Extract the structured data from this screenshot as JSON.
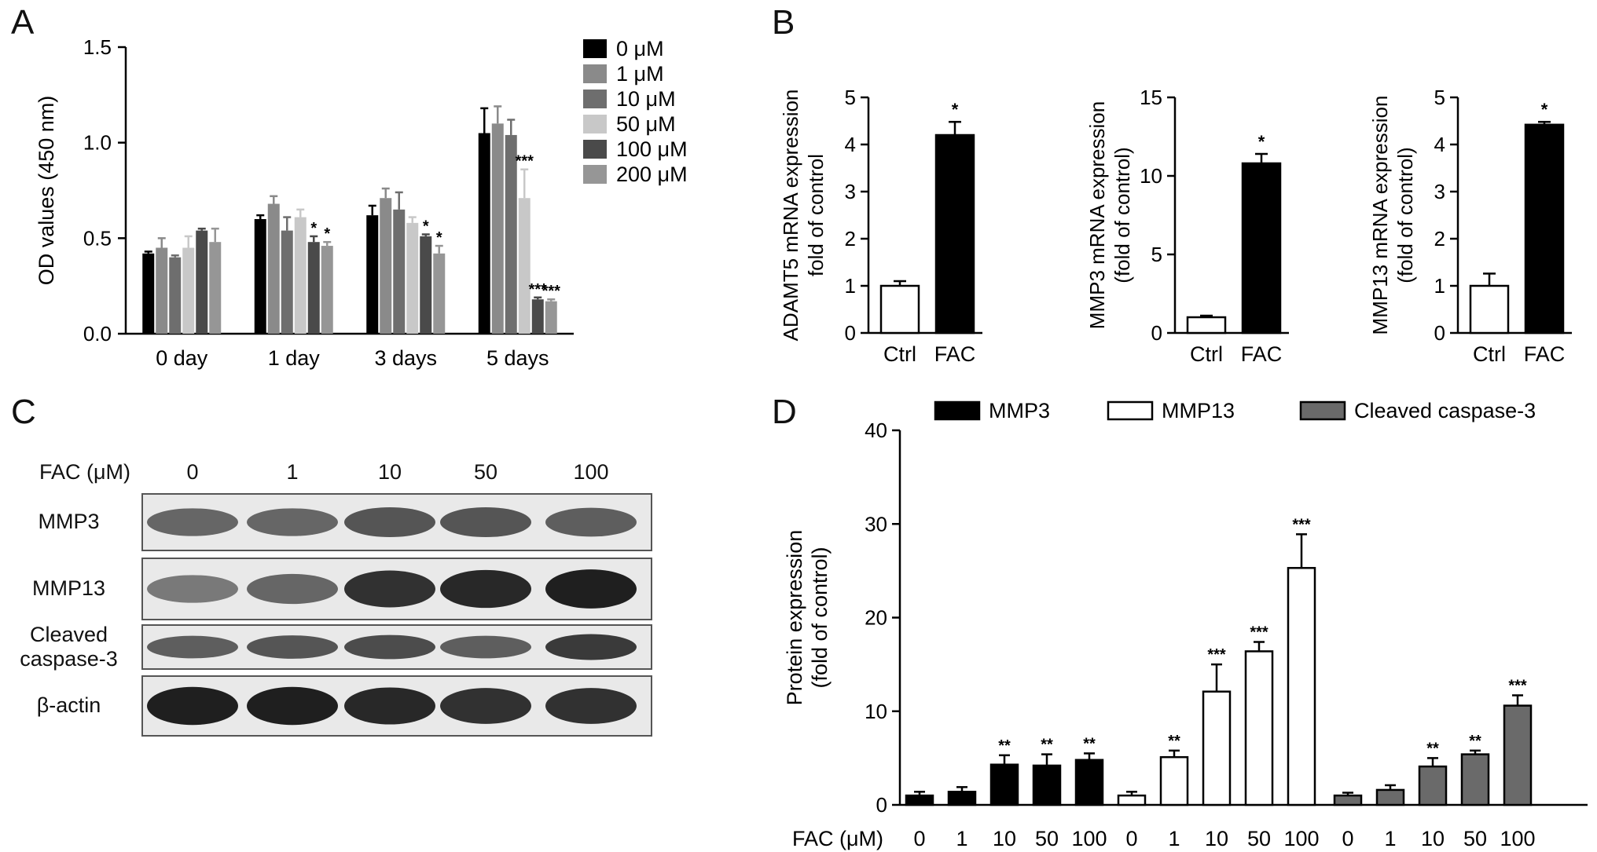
{
  "panels": {
    "A": "A",
    "B": "B",
    "C": "C",
    "D": "D"
  },
  "chart_data": [
    {
      "id": "A",
      "type": "bar",
      "ylabel": "OD values (450 nm)",
      "ylim": [
        0,
        1.5
      ],
      "yticks": [
        "0.0",
        "0.5",
        "1.0",
        "1.5"
      ],
      "categories": [
        "0 day",
        "1 day",
        "3 days",
        "5 days"
      ],
      "legend_position": "top-right",
      "series": [
        {
          "name": "0 μM",
          "color": "#000000",
          "values": [
            0.42,
            0.6,
            0.62,
            1.05
          ],
          "errors": [
            0.01,
            0.02,
            0.05,
            0.13
          ],
          "sig": [
            "",
            "",
            "",
            ""
          ]
        },
        {
          "name": "1 μM",
          "color": "#8a8a8a",
          "values": [
            0.45,
            0.68,
            0.71,
            1.1
          ],
          "errors": [
            0.05,
            0.04,
            0.05,
            0.09
          ],
          "sig": [
            "",
            "",
            "",
            ""
          ]
        },
        {
          "name": "10 μM",
          "color": "#6e6e6e",
          "values": [
            0.4,
            0.54,
            0.65,
            1.04
          ],
          "errors": [
            0.01,
            0.07,
            0.09,
            0.08
          ],
          "sig": [
            "",
            "",
            "",
            ""
          ]
        },
        {
          "name": "50 μM",
          "color": "#c8c8c8",
          "values": [
            0.45,
            0.61,
            0.58,
            0.71
          ],
          "errors": [
            0.06,
            0.04,
            0.03,
            0.15
          ],
          "sig": [
            "",
            "",
            "",
            "***"
          ]
        },
        {
          "name": "100 μM",
          "color": "#4a4a4a",
          "values": [
            0.54,
            0.48,
            0.51,
            0.18
          ],
          "errors": [
            0.01,
            0.03,
            0.01,
            0.01
          ],
          "sig": [
            "",
            "*",
            "*",
            "***"
          ]
        },
        {
          "name": "200 μM",
          "color": "#969696",
          "values": [
            0.48,
            0.46,
            0.42,
            0.17
          ],
          "errors": [
            0.07,
            0.02,
            0.04,
            0.01
          ],
          "sig": [
            "",
            "*",
            "*",
            "***"
          ]
        }
      ]
    },
    {
      "id": "B1",
      "type": "bar",
      "ylabel_lines": [
        "ADAMT5 mRNA expression",
        "fold of control"
      ],
      "ylim": [
        0,
        5
      ],
      "yticks": [
        "0",
        "1",
        "2",
        "3",
        "4",
        "5"
      ],
      "categories": [
        "Ctrl",
        "FAC"
      ],
      "values": [
        1.0,
        4.2
      ],
      "errors": [
        0.1,
        0.28
      ],
      "sig": [
        "",
        "*"
      ],
      "fills": [
        "#ffffff",
        "#000000"
      ]
    },
    {
      "id": "B2",
      "type": "bar",
      "ylabel_lines": [
        "MMP3 mRNA expression",
        "(fold of control)"
      ],
      "ylim": [
        0,
        15
      ],
      "yticks": [
        "0",
        "5",
        "10",
        "15"
      ],
      "categories": [
        "Ctrl",
        "FAC"
      ],
      "values": [
        1.0,
        10.8
      ],
      "errors": [
        0.1,
        0.6
      ],
      "sig": [
        "",
        "*"
      ],
      "fills": [
        "#ffffff",
        "#000000"
      ]
    },
    {
      "id": "B3",
      "type": "bar",
      "ylabel_lines": [
        "MMP13 mRNA expression",
        "(fold of control)"
      ],
      "ylim": [
        0,
        5
      ],
      "yticks": [
        "0",
        "1",
        "2",
        "3",
        "4",
        "5"
      ],
      "categories": [
        "Ctrl",
        "FAC"
      ],
      "values": [
        1.0,
        4.42
      ],
      "errors": [
        0.26,
        0.06
      ],
      "sig": [
        "",
        "*"
      ],
      "fills": [
        "#ffffff",
        "#000000"
      ]
    },
    {
      "id": "D",
      "type": "bar",
      "ylabel_lines": [
        "Protein expression",
        "(fold of control)"
      ],
      "ylim": [
        0,
        40
      ],
      "yticks": [
        "0",
        "10",
        "20",
        "30",
        "40"
      ],
      "x_prefix": "FAC (μM)",
      "categories": [
        "0",
        "1",
        "10",
        "50",
        "100"
      ],
      "legend_position": "top",
      "series": [
        {
          "name": "MMP3",
          "color": "#000000",
          "values": [
            1.0,
            1.4,
            4.3,
            4.2,
            4.8
          ],
          "errors": [
            0.4,
            0.5,
            1.0,
            1.2,
            0.7
          ],
          "sig": [
            "",
            "",
            "**",
            "**",
            "**"
          ]
        },
        {
          "name": "MMP13",
          "color": "#ffffff",
          "values": [
            1.0,
            5.1,
            12.1,
            16.4,
            25.3
          ],
          "errors": [
            0.4,
            0.7,
            2.9,
            1.0,
            3.6
          ],
          "sig": [
            "",
            "**",
            "***",
            "***",
            "***"
          ]
        },
        {
          "name": "Cleaved caspase-3",
          "color": "#6a6a6a",
          "values": [
            1.0,
            1.6,
            4.1,
            5.4,
            10.6
          ],
          "errors": [
            0.3,
            0.5,
            0.9,
            0.4,
            1.1
          ],
          "sig": [
            "",
            "",
            "**",
            "**",
            "***"
          ]
        }
      ]
    }
  ],
  "blot": {
    "header_label": "FAC (μM)",
    "lanes": [
      "0",
      "1",
      "10",
      "50",
      "100"
    ],
    "rows": [
      {
        "label": "MMP3",
        "intensity": [
          0.55,
          0.55,
          0.65,
          0.65,
          0.6
        ]
      },
      {
        "label": "MMP13",
        "intensity": [
          0.45,
          0.55,
          0.85,
          0.9,
          0.95
        ]
      },
      {
        "label": "Cleaved\ncaspase-3",
        "intensity": [
          0.6,
          0.65,
          0.7,
          0.6,
          0.8
        ]
      },
      {
        "label": "β-actin",
        "intensity": [
          0.95,
          0.95,
          0.9,
          0.85,
          0.85
        ]
      }
    ]
  }
}
